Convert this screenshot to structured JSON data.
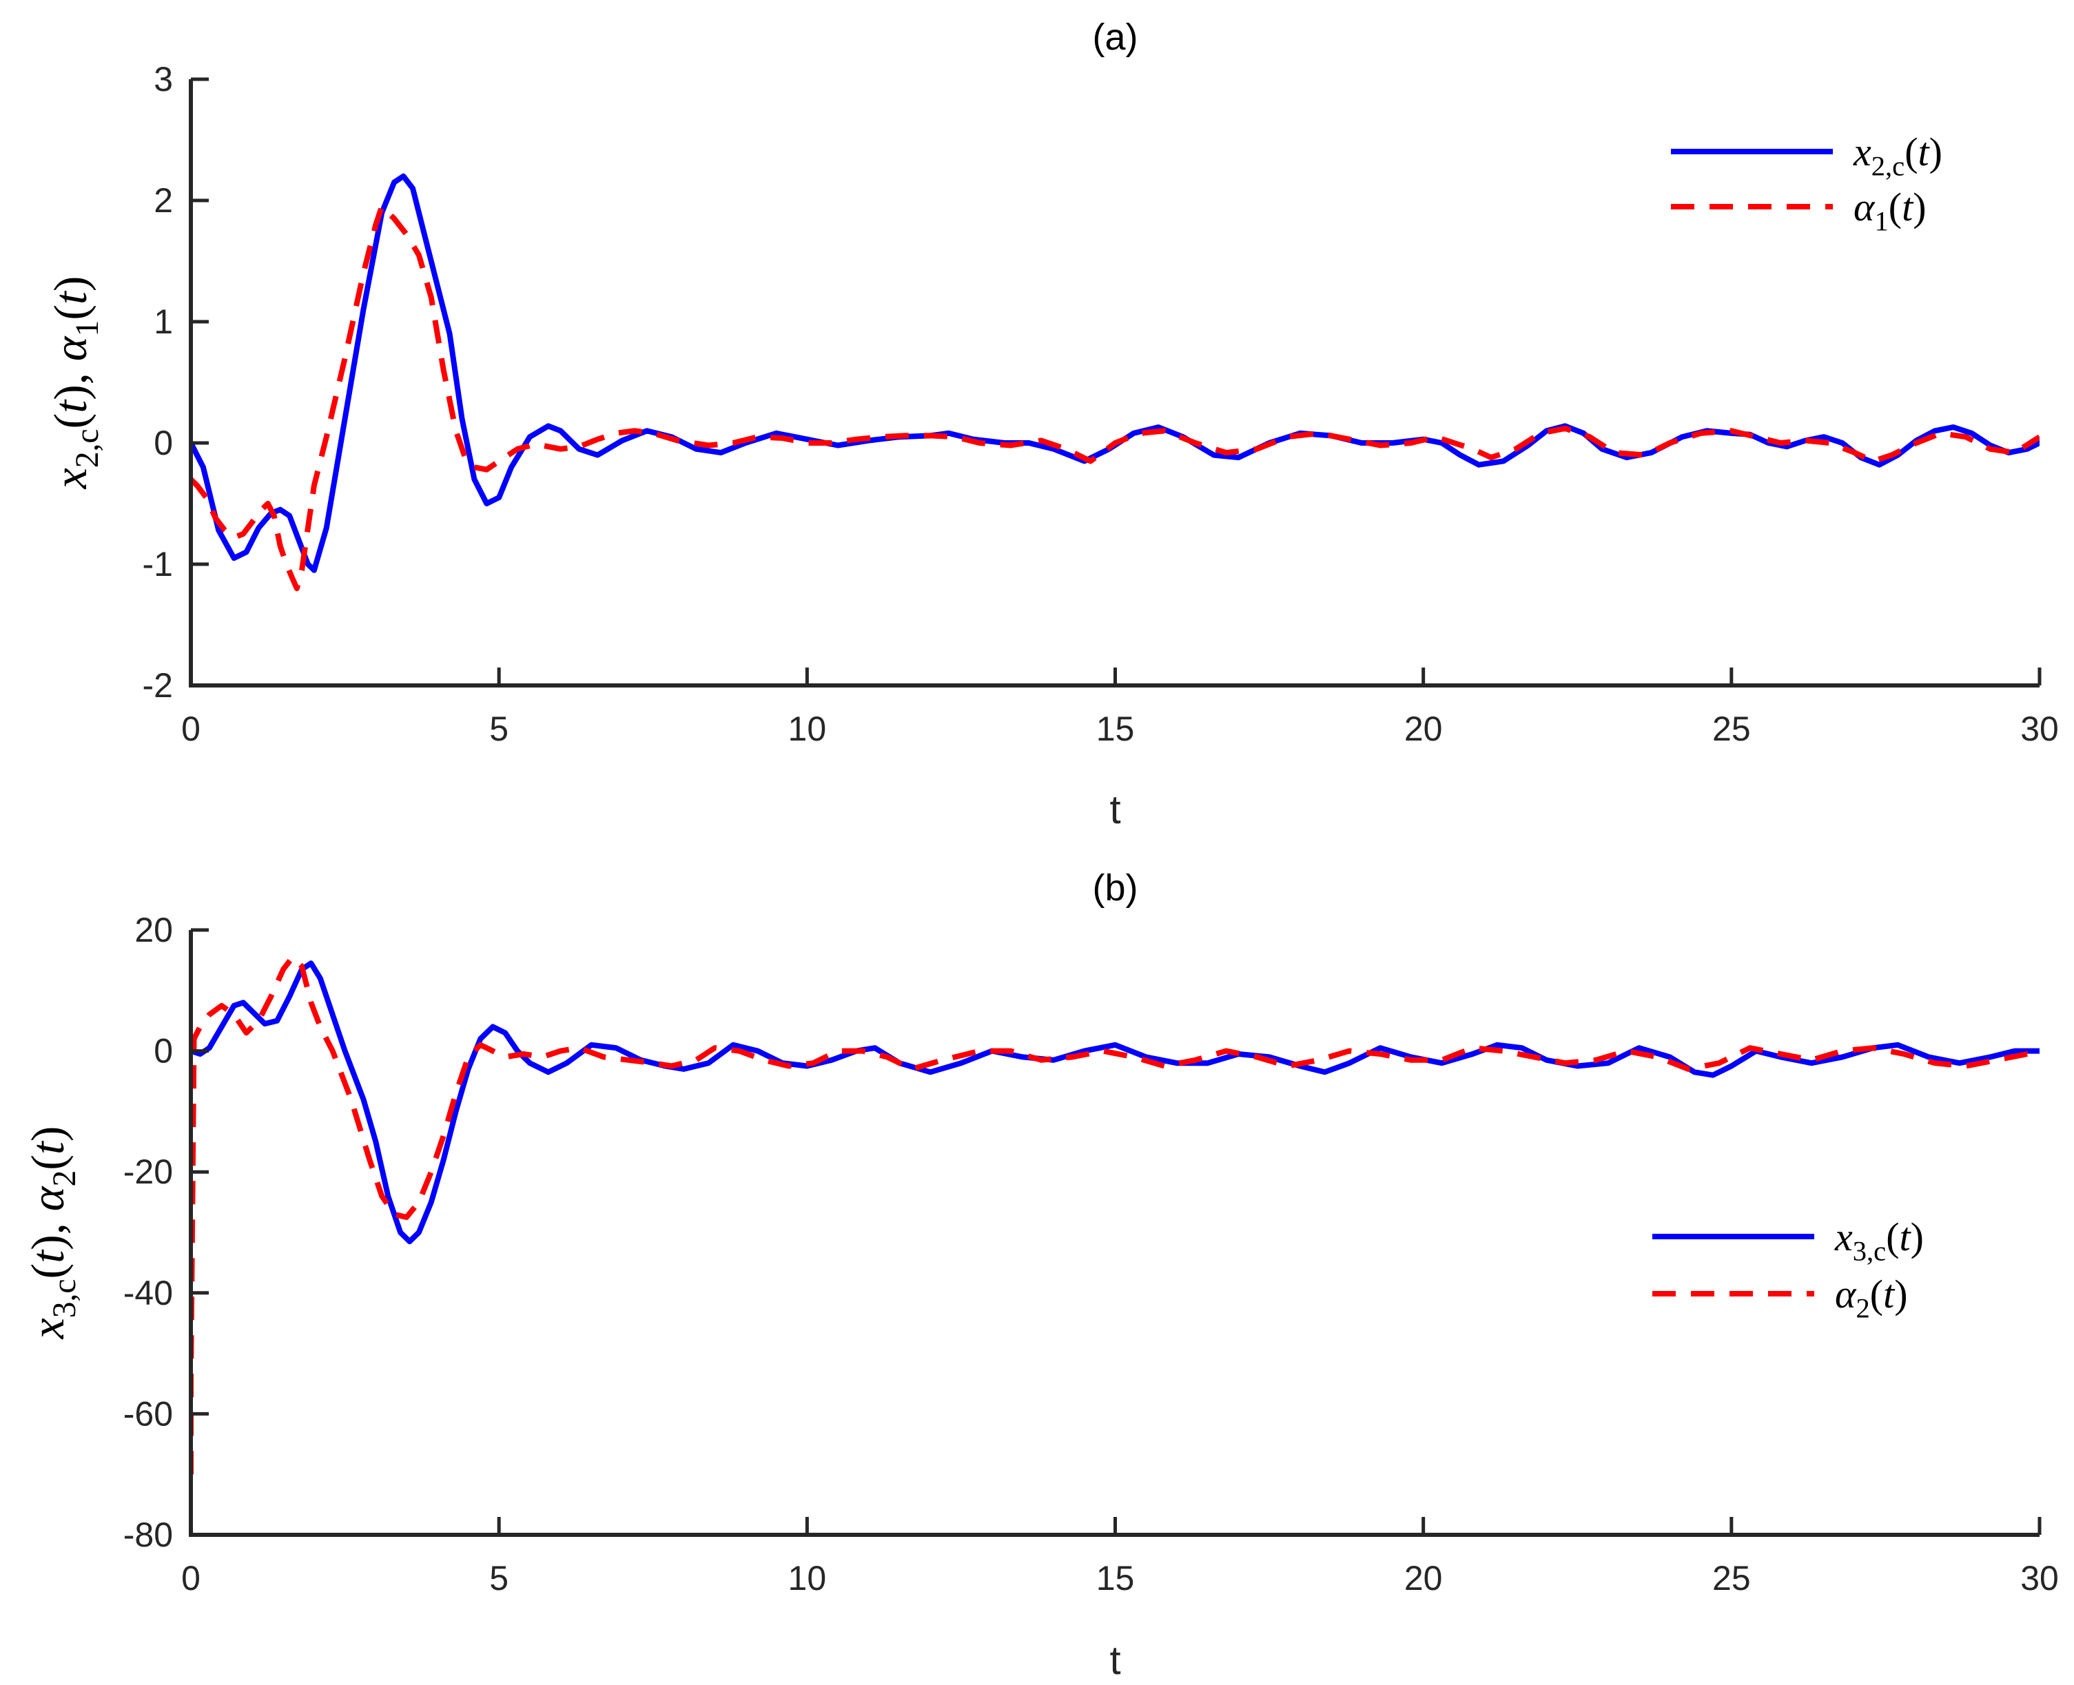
{
  "chart_data": [
    {
      "panel": "a",
      "type": "line",
      "title": "(a)",
      "xlabel": "t",
      "ylabel": {
        "var1": "x",
        "sub1": "2,c",
        "var2": "α",
        "sub2": "1"
      },
      "xlim": [
        0,
        30
      ],
      "ylim": [
        -2,
        3
      ],
      "xticks": [
        "0",
        "5",
        "10",
        "15",
        "20",
        "25",
        "30"
      ],
      "yticks": [
        "-2",
        "-1",
        "0",
        "1",
        "2",
        "3"
      ],
      "xtick_values": [
        0,
        5,
        10,
        15,
        20,
        25,
        30
      ],
      "ytick_values": [
        -2,
        -1,
        0,
        1,
        2,
        3
      ],
      "grid": false,
      "legend_position": "top-right",
      "series": [
        {
          "name": {
            "var": "x",
            "sub": "2,c"
          },
          "color": "#0000ff",
          "dash": "solid",
          "x": [
            0,
            0.2,
            0.45,
            0.7,
            0.9,
            1.1,
            1.3,
            1.45,
            1.6,
            1.75,
            1.9,
            2.0,
            2.2,
            2.5,
            2.8,
            3.1,
            3.3,
            3.45,
            3.6,
            3.8,
            4.0,
            4.2,
            4.4,
            4.6,
            4.8,
            5.0,
            5.2,
            5.5,
            5.8,
            6.0,
            6.3,
            6.6,
            7.0,
            7.4,
            7.8,
            8.2,
            8.6,
            9.0,
            9.5,
            10.0,
            10.5,
            11.0,
            11.5,
            12.0,
            12.3,
            12.7,
            13.2,
            13.6,
            14.0,
            14.5,
            14.9,
            15.3,
            15.7,
            16.1,
            16.6,
            17.0,
            17.5,
            18.0,
            18.5,
            19.0,
            19.5,
            20.0,
            20.3,
            20.6,
            20.9,
            21.3,
            21.7,
            22.0,
            22.3,
            22.6,
            22.9,
            23.3,
            23.7,
            24.2,
            24.6,
            25.0,
            25.3,
            25.6,
            25.9,
            26.2,
            26.5,
            26.8,
            27.1,
            27.4,
            27.7,
            28.0,
            28.3,
            28.6,
            28.9,
            29.2,
            29.5,
            29.8,
            30.0
          ],
          "y": [
            0.0,
            -0.2,
            -0.72,
            -0.95,
            -0.9,
            -0.7,
            -0.58,
            -0.55,
            -0.6,
            -0.8,
            -1.0,
            -1.05,
            -0.7,
            0.2,
            1.1,
            1.9,
            2.15,
            2.2,
            2.1,
            1.7,
            1.3,
            0.9,
            0.2,
            -0.3,
            -0.5,
            -0.45,
            -0.2,
            0.05,
            0.14,
            0.1,
            -0.05,
            -0.1,
            0.02,
            0.1,
            0.05,
            -0.05,
            -0.08,
            0.0,
            0.08,
            0.03,
            -0.02,
            0.02,
            0.05,
            0.06,
            0.08,
            0.03,
            0.0,
            0.0,
            -0.05,
            -0.15,
            -0.05,
            0.08,
            0.13,
            0.05,
            -0.1,
            -0.12,
            0.0,
            0.08,
            0.06,
            0.0,
            0.0,
            0.03,
            0.0,
            -0.1,
            -0.18,
            -0.15,
            -0.02,
            0.1,
            0.14,
            0.08,
            -0.05,
            -0.12,
            -0.08,
            0.05,
            0.1,
            0.08,
            0.07,
            0.0,
            -0.03,
            0.02,
            0.05,
            0.0,
            -0.12,
            -0.18,
            -0.1,
            0.02,
            0.1,
            0.13,
            0.08,
            -0.02,
            -0.08,
            -0.05,
            0.0
          ]
        },
        {
          "name": {
            "var": "α",
            "sub": "1"
          },
          "color": "#ff0000",
          "dash": "dashed",
          "x": [
            0,
            0.1,
            0.25,
            0.4,
            0.55,
            0.7,
            0.85,
            1.0,
            1.15,
            1.25,
            1.35,
            1.45,
            1.55,
            1.65,
            1.72,
            1.8,
            1.9,
            2.0,
            2.2,
            2.5,
            2.8,
            3.0,
            3.1,
            3.3,
            3.5,
            3.7,
            3.9,
            4.1,
            4.3,
            4.45,
            4.6,
            4.8,
            5.0,
            5.3,
            5.6,
            6.0,
            6.3,
            6.6,
            6.9,
            7.2,
            7.5,
            7.9,
            8.4,
            8.8,
            9.2,
            9.6,
            10.0,
            10.4,
            10.8,
            11.2,
            11.6,
            12.0,
            12.4,
            12.8,
            13.3,
            13.8,
            14.2,
            14.6,
            15.0,
            15.4,
            15.8,
            16.3,
            16.8,
            17.3,
            17.8,
            18.3,
            18.8,
            19.3,
            19.8,
            20.2,
            20.5,
            20.8,
            21.1,
            21.5,
            21.9,
            22.3,
            22.7,
            23.1,
            23.6,
            24.0,
            24.5,
            25.0,
            25.4,
            25.8,
            26.2,
            26.6,
            27.0,
            27.3,
            27.6,
            28.0,
            28.4,
            28.8,
            29.2,
            29.6,
            30.0
          ],
          "y": [
            -0.3,
            -0.35,
            -0.45,
            -0.62,
            -0.72,
            -0.78,
            -0.75,
            -0.65,
            -0.55,
            -0.5,
            -0.6,
            -0.85,
            -1.0,
            -1.12,
            -1.2,
            -1.05,
            -0.7,
            -0.35,
            0.05,
            0.7,
            1.4,
            1.8,
            1.95,
            1.85,
            1.72,
            1.55,
            1.2,
            0.6,
            0.1,
            -0.12,
            -0.2,
            -0.22,
            -0.15,
            -0.05,
            -0.01,
            -0.05,
            -0.03,
            0.03,
            0.08,
            0.1,
            0.08,
            0.02,
            -0.02,
            0.0,
            0.05,
            0.04,
            0.0,
            0.0,
            0.03,
            0.05,
            0.06,
            0.06,
            0.05,
            0.0,
            -0.02,
            0.02,
            -0.05,
            -0.15,
            0.0,
            0.08,
            0.1,
            0.0,
            -0.08,
            -0.05,
            0.05,
            0.08,
            0.03,
            -0.02,
            0.0,
            0.05,
            0.0,
            -0.05,
            -0.12,
            -0.05,
            0.08,
            0.12,
            0.05,
            -0.08,
            -0.1,
            0.0,
            0.08,
            0.1,
            0.05,
            0.0,
            0.02,
            0.0,
            -0.08,
            -0.15,
            -0.1,
            0.0,
            0.08,
            0.05,
            -0.05,
            -0.08,
            0.05
          ]
        }
      ]
    },
    {
      "panel": "b",
      "type": "line",
      "title": "(b)",
      "xlabel": "t",
      "ylabel": {
        "var1": "x",
        "sub1": "3,c",
        "var2": "α",
        "sub2": "2"
      },
      "xlim": [
        0,
        30
      ],
      "ylim": [
        -80,
        20
      ],
      "xticks": [
        "0",
        "5",
        "10",
        "15",
        "20",
        "25",
        "30"
      ],
      "yticks": [
        "-80",
        "-60",
        "-40",
        "-20",
        "0",
        "20"
      ],
      "xtick_values": [
        0,
        5,
        10,
        15,
        20,
        25,
        30
      ],
      "ytick_values": [
        -80,
        -60,
        -40,
        -20,
        0,
        20
      ],
      "grid": false,
      "legend_position": "right",
      "series": [
        {
          "name": {
            "var": "x",
            "sub": "3,c"
          },
          "color": "#0000ff",
          "dash": "solid",
          "x": [
            0,
            0.15,
            0.3,
            0.5,
            0.7,
            0.85,
            1.0,
            1.2,
            1.4,
            1.6,
            1.8,
            1.95,
            2.1,
            2.3,
            2.5,
            2.8,
            3.0,
            3.2,
            3.4,
            3.55,
            3.7,
            3.9,
            4.1,
            4.3,
            4.5,
            4.7,
            4.9,
            5.1,
            5.3,
            5.5,
            5.8,
            6.1,
            6.5,
            6.9,
            7.3,
            7.7,
            8.0,
            8.4,
            8.8,
            9.2,
            9.6,
            10.0,
            10.4,
            10.8,
            11.1,
            11.5,
            12.0,
            12.5,
            13.0,
            13.5,
            14.0,
            14.5,
            15.0,
            15.5,
            16.0,
            16.5,
            17.0,
            17.5,
            18.0,
            18.4,
            18.8,
            19.3,
            19.8,
            20.3,
            20.8,
            21.2,
            21.6,
            22.0,
            22.5,
            23.0,
            23.5,
            24.0,
            24.4,
            24.7,
            25.0,
            25.4,
            25.8,
            26.3,
            26.8,
            27.3,
            27.7,
            28.2,
            28.7,
            29.2,
            29.6,
            30.0
          ],
          "y": [
            0,
            -0.5,
            0.5,
            4,
            7.5,
            8,
            6.5,
            4.5,
            5,
            9,
            13.5,
            14.5,
            12,
            6,
            0,
            -8,
            -15,
            -24,
            -30,
            -31.5,
            -30,
            -25,
            -18,
            -10,
            -3,
            2,
            4,
            3,
            0,
            -2,
            -3.5,
            -2,
            1,
            0.5,
            -1.5,
            -2.5,
            -3,
            -2,
            1,
            0,
            -2,
            -2.5,
            -1.5,
            0,
            0.5,
            -2,
            -3.5,
            -2,
            0,
            -1,
            -1.5,
            0,
            1,
            -1,
            -2,
            -2,
            -0.5,
            -1,
            -2.5,
            -3.5,
            -2,
            0.5,
            -1,
            -2,
            -0.5,
            1,
            0.5,
            -1.5,
            -2.5,
            -2,
            0.5,
            -1,
            -3.5,
            -4,
            -2.5,
            0,
            -1,
            -2,
            -1,
            0.5,
            1,
            -1,
            -2,
            -1,
            0,
            0
          ]
        },
        {
          "name": {
            "var": "α",
            "sub": "2"
          },
          "color": "#ff0000",
          "dash": "dashed",
          "x": [
            0,
            0.0,
            0.05,
            0.15,
            0.3,
            0.5,
            0.7,
            0.9,
            1.1,
            1.3,
            1.5,
            1.65,
            1.8,
            1.95,
            2.1,
            2.3,
            2.6,
            2.9,
            3.1,
            3.3,
            3.5,
            3.7,
            3.9,
            4.1,
            4.3,
            4.5,
            4.7,
            4.9,
            5.1,
            5.4,
            5.7,
            6.0,
            6.3,
            6.7,
            7.1,
            7.5,
            7.8,
            8.2,
            8.5,
            8.9,
            9.3,
            9.7,
            10.1,
            10.5,
            10.9,
            11.3,
            11.7,
            12.2,
            12.8,
            13.3,
            13.8,
            14.3,
            14.8,
            15.3,
            15.8,
            16.3,
            16.8,
            17.3,
            17.8,
            18.3,
            18.8,
            19.3,
            19.8,
            20.3,
            20.8,
            21.3,
            21.8,
            22.3,
            22.8,
            23.3,
            23.8,
            24.3,
            24.8,
            25.3,
            25.8,
            26.3,
            26.8,
            27.3,
            27.8,
            28.3,
            28.8,
            29.3,
            29.8,
            30.0
          ],
          "y": [
            -70,
            -55,
            2,
            4,
            6,
            7.5,
            6,
            3,
            5,
            9,
            13.5,
            15.5,
            14,
            8,
            4,
            0,
            -8,
            -18,
            -24,
            -27,
            -27.5,
            -25,
            -20,
            -14,
            -7,
            -1,
            1,
            0,
            -1,
            -0.5,
            -1,
            0,
            0.5,
            -1,
            -1.5,
            -2,
            -2.5,
            -1.5,
            0.5,
            0,
            -1.5,
            -2.5,
            -2,
            0,
            0,
            -1,
            -3,
            -1.5,
            0,
            0,
            -1.5,
            -1,
            0,
            -1,
            -2.5,
            -1.5,
            0,
            -1,
            -2.5,
            -1.5,
            0,
            -0.5,
            -1.5,
            -1.5,
            0.5,
            0,
            -1,
            -2,
            -1.5,
            0,
            -1,
            -3,
            -2,
            0.5,
            -0.5,
            -1.5,
            0,
            0.5,
            -0.5,
            -2,
            -2.5,
            -1.5,
            -0.5,
            -1
          ]
        }
      ]
    }
  ]
}
